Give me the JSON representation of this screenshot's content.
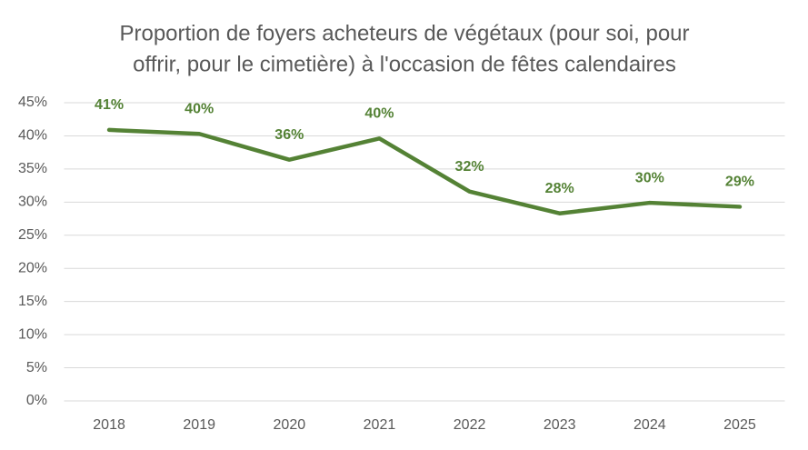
{
  "chart_data": {
    "type": "line",
    "title": [
      "Proportion de foyers acheteurs de végétaux (pour soi, pour",
      "offrir, pour le cimetière) à l'occasion de fêtes calendaires"
    ],
    "categories": [
      "2018",
      "2019",
      "2020",
      "2021",
      "2022",
      "2023",
      "2024",
      "2025"
    ],
    "series": [
      {
        "color": "#548235",
        "values": [
          40.9,
          40.3,
          36.4,
          39.6,
          31.6,
          28.3,
          29.9,
          29.3
        ],
        "value_labels": [
          "41%",
          "40%",
          "36%",
          "40%",
          "32%",
          "28%",
          "30%",
          "29%"
        ]
      }
    ],
    "ylim": [
      0,
      45
    ],
    "yticks": [
      {
        "value": 0,
        "label": "0%"
      },
      {
        "value": 5,
        "label": "5%"
      },
      {
        "value": 10,
        "label": "10%"
      },
      {
        "value": 15,
        "label": "15%"
      },
      {
        "value": 20,
        "label": "20%"
      },
      {
        "value": 25,
        "label": "25%"
      },
      {
        "value": 30,
        "label": "30%"
      },
      {
        "value": 35,
        "label": "35%"
      },
      {
        "value": 40,
        "label": "40%"
      },
      {
        "value": 45,
        "label": "45%"
      }
    ],
    "grid": true
  }
}
